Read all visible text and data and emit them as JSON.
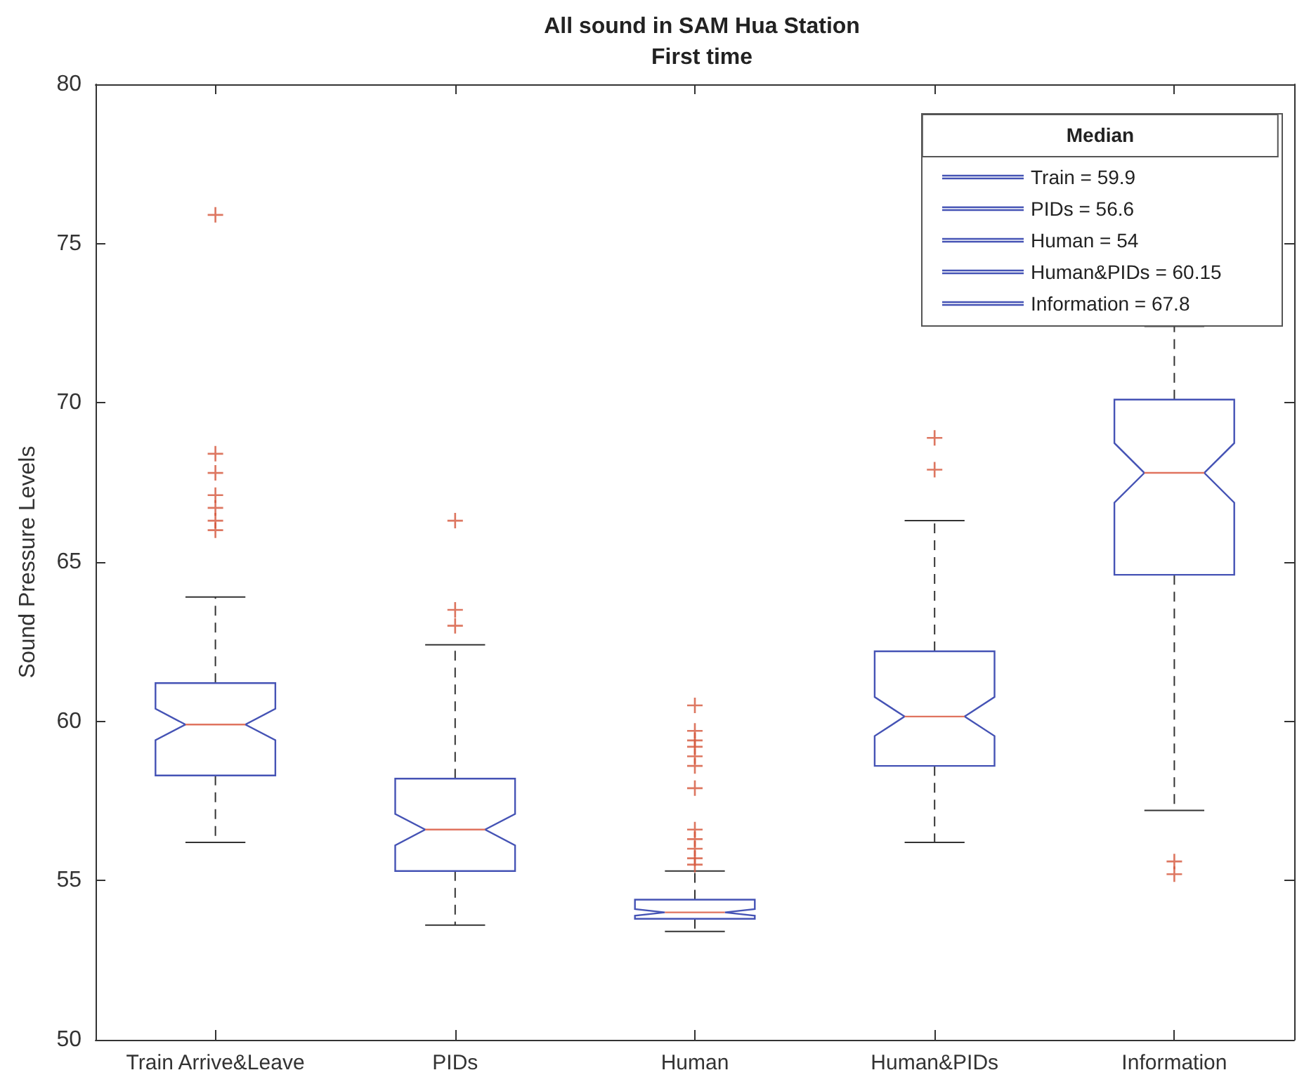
{
  "chart_data": {
    "type": "box",
    "title": "All sound in SAM Hua Station",
    "subtitle": "First time",
    "ylabel": "Sound Pressure Levels",
    "categories": [
      "Train Arrive&Leave",
      "PIDs",
      "Human",
      "Human&PIDs",
      "Information"
    ],
    "ylim": [
      50,
      80
    ],
    "yticks": [
      50,
      55,
      60,
      65,
      70,
      75,
      80
    ],
    "legend": "top right",
    "legend_title": "Median",
    "marker": "cross",
    "series": [
      {
        "name": "Train = 59.9",
        "color": "#4553b5",
        "boxes": [
          {
            "low": 56.2,
            "q1": 58.3,
            "median": 59.9,
            "q3": 61.2,
            "high": 63.9,
            "outliers": [
              75.9,
              68.4,
              67.8,
              67.1,
              66.7,
              66.3,
              66.0
            ]
          },
          null,
          null,
          null,
          null
        ]
      },
      {
        "name": "PIDs = 56.6",
        "color": "#4553b5",
        "boxes": [
          null,
          {
            "low": 53.6,
            "q1": 55.3,
            "median": 56.6,
            "q3": 58.2,
            "high": 62.4,
            "outliers": [
              66.3,
              63.5,
              63.0
            ]
          },
          null,
          null,
          null
        ]
      },
      {
        "name": "Human = 54",
        "color": "#4553b5",
        "boxes": [
          null,
          null,
          {
            "low": 53.4,
            "q1": 53.8,
            "median": 54,
            "q3": 54.4,
            "high": 55.3,
            "outliers": [
              60.5,
              59.7,
              59.4,
              59.2,
              58.9,
              58.6,
              57.9,
              56.6,
              56.3,
              56.0,
              55.7,
              55.5
            ]
          },
          null,
          null
        ]
      },
      {
        "name": "Human&PIDs = 60.15",
        "color": "#4553b5",
        "boxes": [
          null,
          null,
          null,
          {
            "low": 56.2,
            "q1": 58.6,
            "median": 60.15,
            "q3": 62.2,
            "high": 66.3,
            "outliers": [
              68.9,
              67.9
            ]
          },
          null
        ]
      },
      {
        "name": "Information = 67.8",
        "color": "#4553b5",
        "boxes": [
          null,
          null,
          null,
          null,
          {
            "low": 57.2,
            "q1": 64.6,
            "median": 67.8,
            "q3": 70.1,
            "high": 72.4,
            "outliers": [
              55.6,
              55.2
            ]
          }
        ]
      }
    ]
  }
}
